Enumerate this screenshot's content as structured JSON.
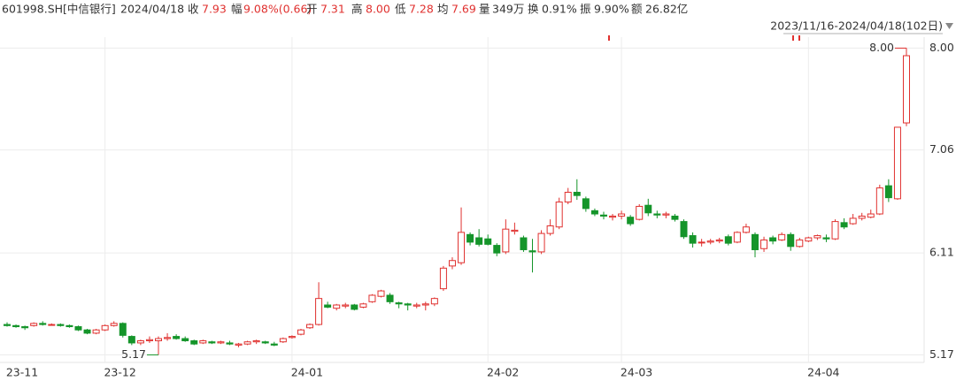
{
  "header": {
    "code": "601998.SH[中信银行]",
    "date": "2024/04/18",
    "items": [
      {
        "label": "收",
        "value": "7.93"
      },
      {
        "label": "幅",
        "value": "9.08%(0.66)"
      },
      {
        "label": "开",
        "value": "7.31"
      },
      {
        "label": "高",
        "value": "8.00"
      },
      {
        "label": "低",
        "value": "7.28"
      },
      {
        "label": "均",
        "value": "7.69"
      },
      {
        "label": "量",
        "value": "349万"
      },
      {
        "label": "换",
        "value": "0.91%"
      },
      {
        "label": "振",
        "value": "9.90%"
      },
      {
        "label": "额",
        "value": "26.82亿"
      }
    ]
  },
  "chart_data": {
    "type": "candlestick",
    "range_label": "2023/11/16-2024/04/18(102日)",
    "open": [
      5.45,
      5.44,
      5.43,
      5.44,
      5.46,
      5.45,
      5.45,
      5.44,
      5.43,
      5.4,
      5.37,
      5.4,
      5.44,
      5.46,
      5.34,
      5.28,
      5.3,
      5.3,
      5.32,
      5.34,
      5.32,
      5.3,
      5.28,
      5.29,
      5.28,
      5.28,
      5.26,
      5.27,
      5.29,
      5.29,
      5.27,
      5.29,
      5.33,
      5.36,
      5.42,
      5.45,
      5.63,
      5.6,
      5.62,
      5.63,
      5.61,
      5.66,
      5.71,
      5.72,
      5.65,
      5.64,
      5.62,
      5.63,
      5.64,
      5.78,
      5.99,
      6.02,
      6.28,
      6.25,
      6.24,
      6.18,
      6.12,
      6.31,
      6.25,
      6.13,
      6.12,
      6.29,
      6.35,
      6.58,
      6.67,
      6.61,
      6.5,
      6.46,
      6.44,
      6.45,
      6.44,
      6.42,
      6.55,
      6.47,
      6.46,
      6.45,
      6.4,
      6.27,
      6.21,
      6.21,
      6.22,
      6.26,
      6.21,
      6.3,
      6.28,
      6.15,
      6.25,
      6.23,
      6.28,
      6.17,
      6.22,
      6.25,
      6.25,
      6.24,
      6.39,
      6.38,
      6.43,
      6.44,
      6.47,
      6.73,
      6.61,
      7.31
    ],
    "high": [
      5.47,
      5.45,
      5.44,
      5.47,
      5.48,
      5.46,
      5.46,
      5.45,
      5.44,
      5.41,
      5.41,
      5.45,
      5.48,
      5.47,
      5.35,
      5.31,
      5.34,
      5.34,
      5.37,
      5.36,
      5.34,
      5.31,
      5.31,
      5.3,
      5.3,
      5.3,
      5.28,
      5.3,
      5.31,
      5.3,
      5.29,
      5.33,
      5.35,
      5.41,
      5.46,
      5.84,
      5.66,
      5.64,
      5.65,
      5.64,
      5.65,
      5.73,
      5.77,
      5.74,
      5.66,
      5.65,
      5.65,
      5.66,
      5.7,
      5.99,
      6.07,
      6.53,
      6.3,
      6.33,
      6.28,
      6.2,
      6.42,
      6.39,
      6.27,
      6.24,
      6.32,
      6.42,
      6.62,
      6.71,
      6.79,
      6.63,
      6.52,
      6.49,
      6.47,
      6.5,
      6.46,
      6.56,
      6.61,
      6.5,
      6.49,
      6.47,
      6.42,
      6.3,
      6.24,
      6.24,
      6.25,
      6.28,
      6.31,
      6.38,
      6.3,
      6.26,
      6.27,
      6.3,
      6.3,
      6.25,
      6.26,
      6.28,
      6.28,
      6.42,
      6.43,
      6.47,
      6.48,
      6.51,
      6.74,
      6.79,
      7.27,
      8.0
    ],
    "low": [
      5.43,
      5.42,
      5.4,
      5.43,
      5.44,
      5.44,
      5.43,
      5.42,
      5.39,
      5.36,
      5.36,
      5.39,
      5.43,
      5.33,
      5.26,
      5.26,
      5.28,
      5.17,
      5.3,
      5.31,
      5.29,
      5.26,
      5.27,
      5.27,
      5.27,
      5.26,
      5.24,
      5.26,
      5.27,
      5.27,
      5.25,
      5.28,
      5.32,
      5.35,
      5.41,
      5.44,
      5.6,
      5.58,
      5.6,
      5.58,
      5.6,
      5.65,
      5.7,
      5.64,
      5.6,
      5.58,
      5.6,
      5.58,
      5.62,
      5.76,
      5.96,
      6.0,
      6.18,
      6.17,
      6.18,
      6.08,
      6.1,
      6.28,
      6.12,
      5.93,
      6.1,
      6.27,
      6.33,
      6.56,
      6.6,
      6.49,
      6.45,
      6.42,
      6.41,
      6.42,
      6.36,
      6.41,
      6.45,
      6.43,
      6.43,
      6.4,
      6.24,
      6.16,
      6.17,
      6.19,
      6.2,
      6.18,
      6.2,
      6.29,
      6.07,
      6.12,
      6.19,
      6.22,
      6.13,
      6.16,
      6.21,
      6.23,
      6.21,
      6.23,
      6.33,
      6.37,
      6.41,
      6.43,
      6.46,
      6.58,
      6.6,
      7.28
    ],
    "close": [
      5.44,
      5.43,
      5.42,
      5.46,
      5.45,
      5.45,
      5.44,
      5.43,
      5.4,
      5.37,
      5.4,
      5.44,
      5.46,
      5.35,
      5.28,
      5.3,
      5.31,
      5.32,
      5.33,
      5.32,
      5.3,
      5.27,
      5.3,
      5.28,
      5.29,
      5.27,
      5.27,
      5.29,
      5.3,
      5.28,
      5.26,
      5.32,
      5.34,
      5.4,
      5.45,
      5.69,
      5.61,
      5.63,
      5.63,
      5.59,
      5.64,
      5.72,
      5.76,
      5.66,
      5.64,
      5.63,
      5.63,
      5.64,
      5.69,
      5.97,
      6.04,
      6.3,
      6.21,
      6.19,
      6.19,
      6.11,
      6.33,
      6.32,
      6.14,
      6.12,
      6.29,
      6.36,
      6.58,
      6.67,
      6.64,
      6.52,
      6.47,
      6.45,
      6.45,
      6.47,
      6.38,
      6.54,
      6.48,
      6.46,
      6.47,
      6.42,
      6.26,
      6.2,
      6.21,
      6.22,
      6.23,
      6.2,
      6.3,
      6.35,
      6.14,
      6.23,
      6.22,
      6.28,
      6.17,
      6.23,
      6.25,
      6.27,
      6.24,
      6.4,
      6.35,
      6.43,
      6.45,
      6.47,
      6.71,
      6.62,
      7.27,
      7.93
    ],
    "xticks": [
      {
        "value": 0,
        "label": "23-11"
      },
      {
        "value": 11,
        "label": "23-12"
      },
      {
        "value": 32,
        "label": "24-01"
      },
      {
        "value": 54,
        "label": "24-02"
      },
      {
        "value": 69,
        "label": "24-03"
      },
      {
        "value": 90,
        "label": "24-04"
      }
    ],
    "ylim": [
      5.1,
      8.24
    ],
    "yticks": [
      5.17,
      6.11,
      7.06,
      {
        "value": 8,
        "label": "8.00"
      }
    ],
    "max_label": "8.00",
    "min_label": "5.17",
    "up_color": "#e0312f",
    "down_color": "#15952a",
    "grid": true
  }
}
